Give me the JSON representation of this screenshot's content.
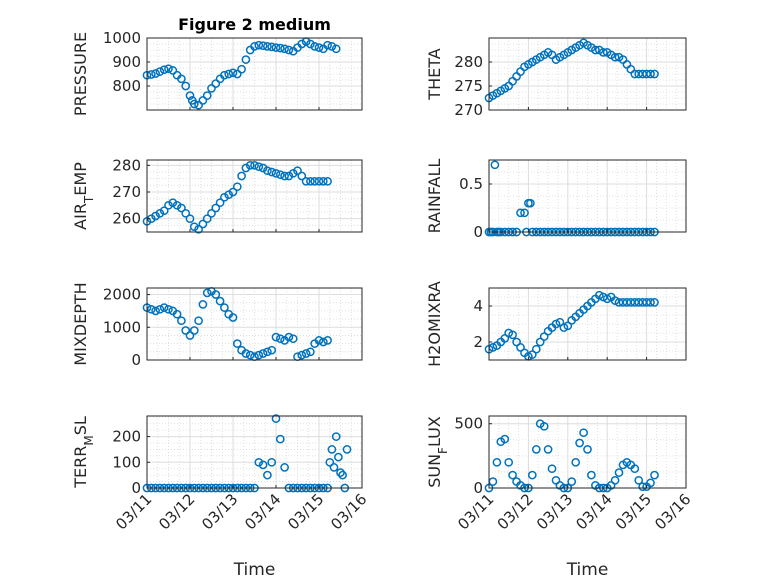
{
  "chart_data": [
    {
      "type": "scatter",
      "title": "Figure 2 medium",
      "ylabel": "PRESSURE",
      "ylim": [
        700,
        1000
      ],
      "yticks": [
        800,
        900,
        1000
      ],
      "yticklabels": [
        "800",
        "900",
        "1000"
      ],
      "xlim": [
        0,
        5
      ],
      "xticks": [
        0,
        1,
        2,
        3,
        4,
        5
      ],
      "xticklabels": [
        "03/11",
        "03/12",
        "03/13",
        "03/14",
        "03/15",
        "03/16"
      ],
      "xlabel": "",
      "grid": true,
      "x": [
        0.0,
        0.1,
        0.2,
        0.3,
        0.4,
        0.5,
        0.6,
        0.7,
        0.8,
        0.9,
        1.0,
        1.05,
        1.1,
        1.2,
        1.3,
        1.4,
        1.5,
        1.6,
        1.7,
        1.8,
        1.9,
        2.0,
        2.1,
        2.2,
        2.3,
        2.4,
        2.5,
        2.6,
        2.7,
        2.8,
        2.9,
        3.0,
        3.1,
        3.2,
        3.3,
        3.4,
        3.5,
        3.6,
        3.7,
        3.8,
        3.9,
        4.0,
        4.1,
        4.2,
        4.3,
        4.4
      ],
      "y": [
        845,
        848,
        852,
        860,
        868,
        872,
        865,
        845,
        830,
        800,
        760,
        740,
        725,
        720,
        740,
        760,
        790,
        810,
        830,
        845,
        850,
        855,
        850,
        870,
        910,
        950,
        965,
        970,
        968,
        965,
        963,
        960,
        958,
        955,
        950,
        945,
        960,
        975,
        985,
        975,
        965,
        960,
        955,
        970,
        965,
        955
      ]
    },
    {
      "type": "scatter",
      "title": "",
      "ylabel": "THETA",
      "ylim": [
        270,
        285
      ],
      "yticks": [
        270,
        275,
        280
      ],
      "yticklabels": [
        "270",
        "275",
        "280"
      ],
      "xlim": [
        0,
        5
      ],
      "xticks": [
        0,
        1,
        2,
        3,
        4,
        5
      ],
      "xticklabels": [
        "03/11",
        "03/12",
        "03/13",
        "03/14",
        "03/15",
        "03/16"
      ],
      "xlabel": "",
      "grid": true,
      "x": [
        0.0,
        0.1,
        0.2,
        0.3,
        0.4,
        0.5,
        0.6,
        0.7,
        0.8,
        0.9,
        1.0,
        1.1,
        1.2,
        1.3,
        1.4,
        1.5,
        1.6,
        1.7,
        1.8,
        1.9,
        2.0,
        2.1,
        2.2,
        2.3,
        2.4,
        2.5,
        2.6,
        2.7,
        2.8,
        2.9,
        3.0,
        3.1,
        3.2,
        3.3,
        3.4,
        3.5,
        3.6,
        3.7,
        3.8,
        3.9,
        4.0,
        4.1,
        4.2
      ],
      "y": [
        272.5,
        273,
        273.5,
        274,
        274.5,
        275,
        276,
        277,
        278,
        279,
        279.5,
        280,
        280.5,
        281,
        281.5,
        282,
        281.5,
        280.5,
        281,
        281.5,
        282,
        282.5,
        283,
        283.5,
        284,
        283.5,
        283,
        282.5,
        282.5,
        282,
        282,
        281.5,
        281,
        281,
        280.5,
        279.5,
        278.5,
        277.5,
        277.5,
        277.5,
        277.5,
        277.5,
        277.5
      ]
    },
    {
      "type": "scatter",
      "title": "",
      "ylabel": "AIR_TEMP",
      "ylim": [
        255,
        282
      ],
      "yticks": [
        260,
        270,
        280
      ],
      "yticklabels": [
        "260",
        "270",
        "280"
      ],
      "xlim": [
        0,
        5
      ],
      "xticks": [
        0,
        1,
        2,
        3,
        4,
        5
      ],
      "xticklabels": [
        "03/11",
        "03/12",
        "03/13",
        "03/14",
        "03/15",
        "03/16"
      ],
      "xlabel": "",
      "grid": true,
      "x": [
        0.0,
        0.1,
        0.2,
        0.3,
        0.4,
        0.5,
        0.6,
        0.7,
        0.8,
        0.9,
        1.0,
        1.1,
        1.2,
        1.3,
        1.4,
        1.5,
        1.6,
        1.7,
        1.8,
        1.9,
        2.0,
        2.1,
        2.2,
        2.3,
        2.4,
        2.5,
        2.6,
        2.7,
        2.8,
        2.9,
        3.0,
        3.1,
        3.2,
        3.3,
        3.4,
        3.5,
        3.6,
        3.7,
        3.8,
        3.9,
        4.0,
        4.1,
        4.2
      ],
      "y": [
        259,
        260,
        261,
        262,
        263,
        265,
        266,
        265,
        264,
        262,
        260,
        257,
        256,
        258,
        260,
        262,
        264,
        266,
        268,
        269,
        270,
        272,
        276,
        279,
        280,
        280,
        279.5,
        279,
        278,
        277.5,
        277,
        276.5,
        276,
        276,
        277,
        278,
        276,
        274,
        274,
        274,
        274,
        274,
        274
      ]
    },
    {
      "type": "scatter",
      "title": "",
      "ylabel": "RAINFALL",
      "ylim": [
        0,
        0.75
      ],
      "yticks": [
        0,
        0.5
      ],
      "yticklabels": [
        "0",
        "0.5"
      ],
      "xlim": [
        0,
        5
      ],
      "xticks": [
        0,
        1,
        2,
        3,
        4,
        5
      ],
      "xticklabels": [
        "03/11",
        "03/12",
        "03/13",
        "03/14",
        "03/15",
        "03/16"
      ],
      "xlabel": "",
      "grid": true,
      "x": [
        0.0,
        0.05,
        0.1,
        0.15,
        0.2,
        0.25,
        0.3,
        0.4,
        0.5,
        0.6,
        0.7,
        0.8,
        0.9,
        0.95,
        1.0,
        1.05,
        1.1,
        1.2,
        1.3,
        1.4,
        1.5,
        1.6,
        1.7,
        1.8,
        1.9,
        2.0,
        2.1,
        2.2,
        2.3,
        2.4,
        2.5,
        2.6,
        2.7,
        2.8,
        2.9,
        3.0,
        3.1,
        3.2,
        3.3,
        3.4,
        3.5,
        3.6,
        3.7,
        3.8,
        3.9,
        4.0,
        4.1,
        4.2
      ],
      "y": [
        0,
        0,
        0,
        0.7,
        0,
        0,
        0,
        0,
        0,
        0,
        0,
        0.2,
        0.2,
        0,
        0.3,
        0.3,
        0,
        0,
        0,
        0,
        0,
        0,
        0,
        0,
        0,
        0,
        0,
        0,
        0,
        0,
        0,
        0,
        0,
        0,
        0,
        0,
        0,
        0,
        0,
        0,
        0,
        0,
        0,
        0,
        0,
        0,
        0,
        0
      ]
    },
    {
      "type": "scatter",
      "title": "",
      "ylabel": "MIXDEPTH",
      "ylim": [
        0,
        2200
      ],
      "yticks": [
        0,
        1000,
        2000
      ],
      "yticklabels": [
        "0",
        "1000",
        "2000"
      ],
      "xlim": [
        0,
        5
      ],
      "xticks": [
        0,
        1,
        2,
        3,
        4,
        5
      ],
      "xticklabels": [
        "03/11",
        "03/12",
        "03/13",
        "03/14",
        "03/15",
        "03/16"
      ],
      "xlabel": "",
      "grid": true,
      "x": [
        0.0,
        0.1,
        0.2,
        0.3,
        0.4,
        0.5,
        0.6,
        0.7,
        0.8,
        0.9,
        1.0,
        1.1,
        1.2,
        1.3,
        1.4,
        1.5,
        1.6,
        1.7,
        1.8,
        1.9,
        2.0,
        2.1,
        2.2,
        2.3,
        2.4,
        2.5,
        2.6,
        2.7,
        2.8,
        2.9,
        3.0,
        3.1,
        3.2,
        3.3,
        3.4,
        3.5,
        3.6,
        3.7,
        3.8,
        3.9,
        4.0,
        4.1,
        4.2
      ],
      "y": [
        1600,
        1550,
        1500,
        1550,
        1600,
        1550,
        1500,
        1400,
        1200,
        900,
        750,
        900,
        1200,
        1700,
        2050,
        2100,
        2000,
        1800,
        1600,
        1400,
        1300,
        500,
        300,
        200,
        150,
        100,
        150,
        200,
        250,
        300,
        700,
        650,
        600,
        700,
        650,
        100,
        150,
        200,
        250,
        500,
        600,
        550,
        600
      ]
    },
    {
      "type": "scatter",
      "title": "",
      "ylabel": "H2OMIXRA",
      "ylim": [
        1,
        5
      ],
      "yticks": [
        2,
        4
      ],
      "yticklabels": [
        "2",
        "4"
      ],
      "xlim": [
        0,
        5
      ],
      "xticks": [
        0,
        1,
        2,
        3,
        4,
        5
      ],
      "xticklabels": [
        "03/11",
        "03/12",
        "03/13",
        "03/14",
        "03/15",
        "03/16"
      ],
      "xlabel": "",
      "grid": true,
      "x": [
        0.0,
        0.1,
        0.2,
        0.3,
        0.4,
        0.5,
        0.6,
        0.7,
        0.8,
        0.9,
        1.0,
        1.1,
        1.2,
        1.3,
        1.4,
        1.5,
        1.6,
        1.7,
        1.8,
        1.9,
        2.0,
        2.1,
        2.2,
        2.3,
        2.4,
        2.5,
        2.6,
        2.7,
        2.8,
        2.9,
        3.0,
        3.1,
        3.2,
        3.3,
        3.4,
        3.5,
        3.6,
        3.7,
        3.8,
        3.9,
        4.0,
        4.1,
        4.2
      ],
      "y": [
        1.6,
        1.7,
        1.8,
        2.0,
        2.2,
        2.5,
        2.4,
        2.0,
        1.7,
        1.4,
        1.2,
        1.3,
        1.6,
        2.0,
        2.3,
        2.6,
        2.8,
        3.0,
        3.1,
        2.8,
        2.9,
        3.2,
        3.4,
        3.6,
        3.8,
        4.0,
        4.2,
        4.4,
        4.6,
        4.5,
        4.4,
        4.5,
        4.3,
        4.2,
        4.2,
        4.2,
        4.2,
        4.2,
        4.2,
        4.2,
        4.2,
        4.2,
        4.2
      ]
    },
    {
      "type": "scatter",
      "title": "",
      "ylabel": "TERR_MSL",
      "ylim": [
        0,
        280
      ],
      "yticks": [
        0,
        100,
        200
      ],
      "yticklabels": [
        "0",
        "100",
        "200"
      ],
      "xlim": [
        0,
        5
      ],
      "xticks": [
        0,
        1,
        2,
        3,
        4,
        5
      ],
      "xticklabels": [
        "03/11",
        "03/12",
        "03/13",
        "03/14",
        "03/15",
        "03/16"
      ],
      "xlabel": "Time",
      "grid": true,
      "x": [
        0.0,
        0.1,
        0.2,
        0.3,
        0.4,
        0.5,
        0.6,
        0.7,
        0.8,
        0.9,
        1.0,
        1.1,
        1.2,
        1.3,
        1.4,
        1.5,
        1.6,
        1.7,
        1.8,
        1.9,
        2.0,
        2.1,
        2.2,
        2.3,
        2.4,
        2.5,
        2.6,
        2.7,
        2.8,
        2.9,
        3.0,
        3.1,
        3.2,
        3.3,
        3.4,
        3.5,
        3.6,
        3.7,
        3.8,
        3.9,
        4.0,
        4.1,
        4.2,
        4.25,
        4.3,
        4.35,
        4.4,
        4.45,
        4.5,
        4.55,
        4.6,
        4.65
      ],
      "y": [
        0,
        0,
        0,
        0,
        0,
        0,
        0,
        0,
        0,
        0,
        0,
        0,
        0,
        0,
        0,
        0,
        0,
        0,
        0,
        0,
        0,
        0,
        0,
        0,
        0,
        0,
        100,
        90,
        50,
        100,
        270,
        190,
        80,
        0,
        0,
        0,
        0,
        0,
        0,
        0,
        0,
        0,
        0,
        100,
        150,
        80,
        200,
        120,
        60,
        50,
        0,
        150
      ]
    },
    {
      "type": "scatter",
      "title": "",
      "ylabel": "SUN_FLUX",
      "ylim": [
        0,
        560
      ],
      "yticks": [
        0,
        500
      ],
      "yticklabels": [
        "0",
        "500"
      ],
      "xlim": [
        0,
        5
      ],
      "xticks": [
        0,
        1,
        2,
        3,
        4,
        5
      ],
      "xticklabels": [
        "03/11",
        "03/12",
        "03/13",
        "03/14",
        "03/15",
        "03/16"
      ],
      "xlabel": "Time",
      "grid": true,
      "x": [
        0.0,
        0.1,
        0.2,
        0.3,
        0.4,
        0.5,
        0.6,
        0.7,
        0.8,
        0.9,
        1.0,
        1.1,
        1.2,
        1.3,
        1.4,
        1.5,
        1.6,
        1.7,
        1.8,
        1.9,
        2.0,
        2.1,
        2.2,
        2.3,
        2.4,
        2.5,
        2.6,
        2.7,
        2.8,
        2.9,
        3.0,
        3.1,
        3.2,
        3.3,
        3.4,
        3.5,
        3.6,
        3.7,
        3.8,
        3.9,
        4.0,
        4.1,
        4.2
      ],
      "y": [
        0,
        50,
        200,
        360,
        380,
        200,
        100,
        50,
        20,
        0,
        0,
        100,
        300,
        500,
        480,
        300,
        150,
        60,
        20,
        0,
        0,
        50,
        200,
        350,
        430,
        300,
        100,
        20,
        0,
        0,
        0,
        20,
        60,
        120,
        180,
        200,
        180,
        150,
        60,
        10,
        10,
        40,
        100
      ]
    }
  ]
}
